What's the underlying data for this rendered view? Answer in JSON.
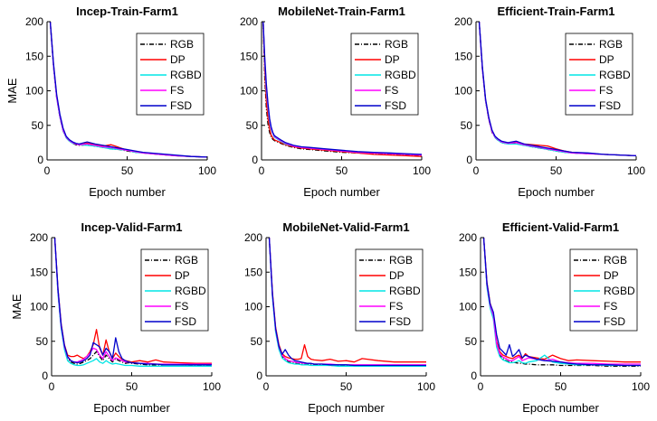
{
  "figure": {
    "legend_labels": [
      "RGB",
      "DP",
      "RGBD",
      "FS",
      "FSD"
    ],
    "series_colors": {
      "RGB": "#000000",
      "DP": "#ff0000",
      "RGBD": "#00e5e5",
      "FS": "#ff00ff",
      "FSD": "#0000cc"
    }
  },
  "chart_data": [
    {
      "type": "line",
      "title": "Incep-Train-Farm1",
      "xlabel": "Epoch number",
      "ylabel": "MAE",
      "xlim": [
        0,
        100
      ],
      "ylim": [
        0,
        200
      ],
      "xticks": [
        0,
        50,
        100
      ],
      "yticks": [
        0,
        50,
        100,
        150,
        200
      ],
      "grid": false,
      "legend": "top-right",
      "x": [
        2,
        4,
        6,
        8,
        10,
        12,
        14,
        16,
        18,
        20,
        25,
        30,
        35,
        40,
        45,
        50,
        55,
        60,
        70,
        80,
        90,
        100
      ],
      "series": [
        {
          "name": "RGB",
          "values": [
            200,
            135,
            90,
            62,
            42,
            32,
            27,
            24,
            22,
            21,
            22,
            20,
            18,
            16,
            15,
            13,
            11,
            10,
            8,
            6,
            5,
            4
          ]
        },
        {
          "name": "DP",
          "values": [
            200,
            138,
            92,
            64,
            44,
            33,
            28,
            25,
            23,
            22,
            24,
            22,
            20,
            22,
            18,
            14,
            12,
            10,
            8,
            6,
            5,
            4
          ]
        },
        {
          "name": "RGBD",
          "values": [
            200,
            136,
            90,
            62,
            42,
            32,
            27,
            24,
            23,
            22,
            21,
            20,
            18,
            16,
            15,
            14,
            11,
            10,
            8,
            6,
            5,
            4
          ]
        },
        {
          "name": "FS",
          "values": [
            200,
            137,
            91,
            63,
            43,
            33,
            28,
            25,
            23,
            22,
            23,
            21,
            19,
            18,
            16,
            14,
            12,
            10,
            8,
            6,
            5,
            4
          ]
        },
        {
          "name": "FSD",
          "values": [
            200,
            140,
            95,
            66,
            46,
            34,
            29,
            26,
            24,
            23,
            26,
            23,
            21,
            19,
            17,
            15,
            13,
            11,
            9,
            7,
            5,
            4
          ]
        }
      ]
    },
    {
      "type": "line",
      "title": "MobileNet-Train-Farm1",
      "xlabel": "Epoch number",
      "ylabel": "",
      "xlim": [
        0,
        100
      ],
      "ylim": [
        0,
        200
      ],
      "xticks": [
        0,
        50,
        100
      ],
      "yticks": [
        0,
        50,
        100,
        150,
        200
      ],
      "grid": false,
      "legend": "top-right",
      "x": [
        1,
        2,
        3,
        4,
        5,
        6,
        7,
        8,
        10,
        12,
        15,
        20,
        25,
        30,
        40,
        50,
        60,
        70,
        80,
        90,
        100
      ],
      "series": [
        {
          "name": "RGB",
          "values": [
            200,
            120,
            75,
            52,
            40,
            33,
            30,
            28,
            26,
            24,
            21,
            18,
            16,
            15,
            13,
            11,
            10,
            9,
            8,
            7,
            6
          ]
        },
        {
          "name": "DP",
          "values": [
            200,
            130,
            85,
            60,
            45,
            36,
            32,
            29,
            27,
            25,
            22,
            19,
            17,
            16,
            14,
            12,
            10,
            8,
            7,
            6,
            5
          ]
        },
        {
          "name": "RGBD",
          "values": [
            200,
            140,
            100,
            75,
            55,
            44,
            38,
            33,
            30,
            27,
            23,
            20,
            18,
            17,
            15,
            13,
            11,
            10,
            9,
            8,
            7
          ]
        },
        {
          "name": "FS",
          "values": [
            200,
            145,
            105,
            78,
            58,
            46,
            39,
            34,
            31,
            28,
            24,
            20,
            18,
            17,
            15,
            13,
            11,
            10,
            9,
            8,
            7
          ]
        },
        {
          "name": "FSD",
          "values": [
            200,
            150,
            110,
            82,
            60,
            48,
            40,
            35,
            32,
            29,
            25,
            21,
            19,
            18,
            16,
            14,
            12,
            11,
            10,
            9,
            8
          ]
        }
      ]
    },
    {
      "type": "line",
      "title": "Efficient-Train-Farm1",
      "xlabel": "Epoch number",
      "ylabel": "",
      "xlim": [
        0,
        100
      ],
      "ylim": [
        0,
        200
      ],
      "xticks": [
        0,
        50,
        100
      ],
      "yticks": [
        0,
        50,
        100,
        150,
        200
      ],
      "grid": false,
      "legend": "top-right",
      "x": [
        2,
        4,
        6,
        8,
        10,
        12,
        14,
        16,
        18,
        20,
        25,
        30,
        35,
        40,
        45,
        50,
        55,
        60,
        70,
        80,
        90,
        100
      ],
      "series": [
        {
          "name": "RGB",
          "values": [
            200,
            130,
            85,
            58,
            40,
            32,
            28,
            25,
            24,
            23,
            24,
            21,
            19,
            17,
            15,
            13,
            11,
            10,
            9,
            8,
            7,
            6
          ]
        },
        {
          "name": "DP",
          "values": [
            200,
            132,
            86,
            60,
            42,
            33,
            29,
            26,
            25,
            24,
            26,
            23,
            22,
            21,
            20,
            16,
            13,
            11,
            9,
            8,
            7,
            6
          ]
        },
        {
          "name": "RGBD",
          "values": [
            200,
            131,
            85,
            59,
            41,
            32,
            28,
            25,
            24,
            23,
            23,
            21,
            19,
            17,
            15,
            13,
            11,
            10,
            9,
            8,
            7,
            6
          ]
        },
        {
          "name": "FS",
          "values": [
            200,
            131,
            86,
            59,
            41,
            33,
            29,
            26,
            25,
            24,
            25,
            22,
            20,
            18,
            16,
            14,
            12,
            10,
            9,
            8,
            7,
            6
          ]
        },
        {
          "name": "FSD",
          "values": [
            200,
            134,
            88,
            61,
            43,
            34,
            30,
            27,
            26,
            25,
            27,
            23,
            21,
            19,
            17,
            15,
            13,
            11,
            10,
            8,
            7,
            6
          ]
        }
      ]
    },
    {
      "type": "line",
      "title": "Incep-Valid-Farm1",
      "xlabel": "Epoch number",
      "ylabel": "MAE",
      "xlim": [
        0,
        100
      ],
      "ylim": [
        0,
        200
      ],
      "xticks": [
        0,
        50,
        100
      ],
      "yticks": [
        0,
        50,
        100,
        150,
        200
      ],
      "grid": false,
      "legend": "top-right",
      "x": [
        2,
        4,
        6,
        8,
        10,
        12,
        14,
        16,
        18,
        20,
        22,
        24,
        26,
        28,
        30,
        32,
        34,
        36,
        38,
        40,
        42,
        44,
        46,
        48,
        50,
        55,
        60,
        65,
        70,
        80,
        90,
        100
      ],
      "series": [
        {
          "name": "RGB",
          "values": [
            200,
            120,
            70,
            40,
            25,
            20,
            18,
            17,
            18,
            20,
            22,
            25,
            30,
            35,
            28,
            22,
            30,
            25,
            20,
            25,
            22,
            20,
            18,
            19,
            18,
            17,
            16,
            16,
            16,
            16,
            15,
            15
          ]
        },
        {
          "name": "DP",
          "values": [
            200,
            125,
            75,
            45,
            30,
            28,
            28,
            30,
            27,
            25,
            28,
            35,
            45,
            67,
            40,
            30,
            52,
            35,
            25,
            33,
            28,
            24,
            22,
            21,
            20,
            22,
            20,
            23,
            20,
            19,
            18,
            18
          ]
        },
        {
          "name": "RGBD",
          "values": [
            200,
            118,
            68,
            38,
            22,
            18,
            16,
            15,
            15,
            16,
            18,
            20,
            22,
            25,
            20,
            18,
            22,
            19,
            17,
            18,
            17,
            16,
            15,
            15,
            15,
            14,
            14,
            14,
            14,
            14,
            14,
            14
          ]
        },
        {
          "name": "FS",
          "values": [
            200,
            122,
            72,
            42,
            27,
            22,
            20,
            20,
            22,
            24,
            28,
            33,
            40,
            38,
            30,
            25,
            35,
            28,
            22,
            26,
            24,
            22,
            20,
            20,
            19,
            18,
            18,
            17,
            17,
            17,
            17,
            17
          ]
        },
        {
          "name": "FSD",
          "values": [
            200,
            125,
            74,
            44,
            28,
            22,
            20,
            19,
            20,
            22,
            25,
            30,
            48,
            45,
            42,
            30,
            40,
            35,
            25,
            55,
            35,
            25,
            22,
            20,
            19,
            18,
            17,
            17,
            16,
            16,
            16,
            16
          ]
        }
      ]
    },
    {
      "type": "line",
      "title": "MobileNet-Valid-Farm1",
      "xlabel": "Epoch number",
      "ylabel": "",
      "xlim": [
        0,
        100
      ],
      "ylim": [
        0,
        200
      ],
      "xticks": [
        0,
        50,
        100
      ],
      "yticks": [
        0,
        50,
        100,
        150,
        200
      ],
      "grid": false,
      "legend": "top-right",
      "x": [
        2,
        4,
        6,
        8,
        10,
        12,
        14,
        16,
        18,
        20,
        22,
        24,
        26,
        28,
        30,
        35,
        40,
        45,
        50,
        55,
        60,
        70,
        80,
        90,
        100
      ],
      "series": [
        {
          "name": "RGB",
          "values": [
            200,
            115,
            65,
            40,
            28,
            23,
            20,
            19,
            18,
            18,
            17,
            17,
            17,
            16,
            16,
            16,
            15,
            15,
            15,
            15,
            15,
            15,
            15,
            15,
            15
          ]
        },
        {
          "name": "DP",
          "values": [
            200,
            120,
            70,
            45,
            32,
            28,
            26,
            25,
            24,
            24,
            25,
            45,
            28,
            24,
            23,
            22,
            24,
            21,
            22,
            20,
            25,
            22,
            20,
            20,
            20
          ]
        },
        {
          "name": "RGBD",
          "values": [
            200,
            113,
            63,
            38,
            26,
            22,
            19,
            18,
            17,
            17,
            16,
            16,
            16,
            15,
            15,
            15,
            15,
            14,
            14,
            14,
            14,
            14,
            14,
            14,
            14
          ]
        },
        {
          "name": "FS",
          "values": [
            200,
            117,
            67,
            42,
            30,
            25,
            22,
            21,
            20,
            19,
            19,
            18,
            18,
            18,
            17,
            17,
            17,
            16,
            16,
            16,
            16,
            16,
            16,
            16,
            16
          ]
        },
        {
          "name": "FSD",
          "values": [
            200,
            118,
            68,
            43,
            31,
            38,
            30,
            25,
            22,
            21,
            20,
            19,
            18,
            18,
            17,
            17,
            16,
            16,
            16,
            15,
            15,
            15,
            15,
            15,
            15
          ]
        }
      ]
    },
    {
      "type": "line",
      "title": "Efficient-Valid-Farm1",
      "xlabel": "Epoch number",
      "ylabel": "",
      "xlim": [
        0,
        100
      ],
      "ylim": [
        0,
        200
      ],
      "xticks": [
        0,
        50,
        100
      ],
      "yticks": [
        0,
        50,
        100,
        150,
        200
      ],
      "grid": false,
      "legend": "top-right",
      "x": [
        2,
        4,
        6,
        8,
        10,
        12,
        14,
        16,
        18,
        20,
        22,
        24,
        26,
        28,
        30,
        35,
        40,
        45,
        50,
        55,
        60,
        70,
        80,
        90,
        100
      ],
      "series": [
        {
          "name": "RGB",
          "values": [
            200,
            130,
            100,
            85,
            45,
            30,
            25,
            22,
            20,
            20,
            19,
            18,
            18,
            17,
            17,
            16,
            16,
            16,
            15,
            15,
            15,
            15,
            14,
            14,
            14
          ]
        },
        {
          "name": "DP",
          "values": [
            200,
            135,
            105,
            90,
            50,
            35,
            30,
            28,
            26,
            25,
            28,
            30,
            25,
            32,
            28,
            26,
            24,
            30,
            25,
            22,
            23,
            22,
            21,
            20,
            20
          ]
        },
        {
          "name": "RGBD",
          "values": [
            200,
            128,
            98,
            82,
            42,
            28,
            23,
            21,
            19,
            19,
            20,
            22,
            19,
            18,
            20,
            22,
            30,
            20,
            18,
            17,
            16,
            16,
            15,
            15,
            15
          ]
        },
        {
          "name": "FS",
          "values": [
            200,
            132,
            102,
            87,
            47,
            32,
            27,
            25,
            22,
            22,
            25,
            28,
            22,
            24,
            26,
            24,
            22,
            24,
            20,
            19,
            18,
            18,
            17,
            17,
            17
          ]
        },
        {
          "name": "FSD",
          "values": [
            200,
            134,
            104,
            92,
            60,
            40,
            35,
            30,
            45,
            28,
            32,
            38,
            26,
            30,
            28,
            24,
            22,
            21,
            20,
            18,
            17,
            16,
            16,
            15,
            15
          ]
        }
      ]
    }
  ]
}
